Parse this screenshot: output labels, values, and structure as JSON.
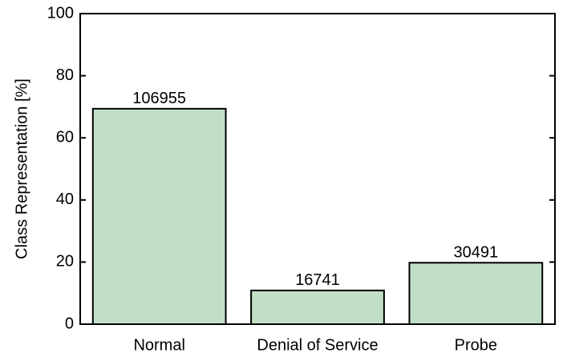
{
  "chart_data": {
    "type": "bar",
    "y_label": "Class Representation [%]",
    "categories": [
      "Normal",
      "Denial of Service",
      "Probe"
    ],
    "values": [
      69.37,
      10.86,
      19.78
    ],
    "counts": [
      106955,
      16741,
      30491
    ],
    "color": "#c2dfc6",
    "ylim": [
      0,
      100
    ],
    "yticks": [
      0,
      20,
      40,
      60,
      80,
      100
    ],
    "grid": false
  }
}
